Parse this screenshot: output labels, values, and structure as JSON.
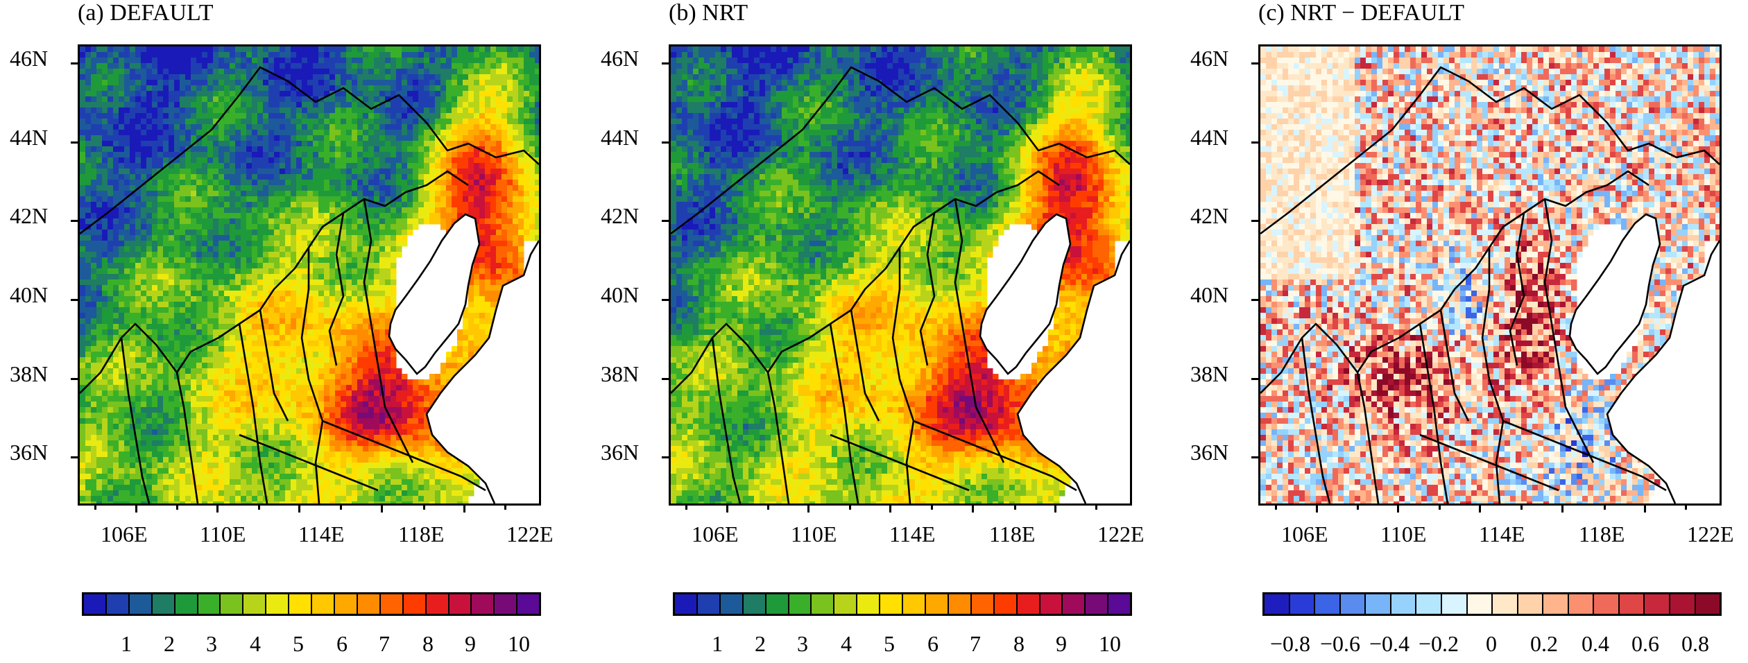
{
  "panels": [
    {
      "title": "(a) DEFAULT",
      "style": "default",
      "lat_labels": [
        "46N",
        "44N",
        "42N",
        "40N",
        "38N",
        "36N"
      ],
      "lon_labels": [
        "106E",
        "110E",
        "114E",
        "118E",
        "122E"
      ],
      "colorbar": {
        "colors": [
          "#1a1ab8",
          "#1f3fb0",
          "#1d5a9a",
          "#1e7d64",
          "#1f9a3a",
          "#3ab02a",
          "#7ac21e",
          "#b8d41a",
          "#eaea10",
          "#ffe000",
          "#ffc800",
          "#ffa800",
          "#ff8c00",
          "#ff6400",
          "#ff3c00",
          "#e81e1e",
          "#c8123c",
          "#a00a5a",
          "#780a78",
          "#5a0a96"
        ],
        "labels": [
          "1",
          "2",
          "3",
          "4",
          "5",
          "6",
          "7",
          "8",
          "9",
          "10"
        ]
      }
    },
    {
      "title": "(b) NRT",
      "style": "default",
      "lat_labels": [
        "46N",
        "44N",
        "42N",
        "40N",
        "38N",
        "36N"
      ],
      "lon_labels": [
        "106E",
        "110E",
        "114E",
        "118E",
        "122E"
      ],
      "colorbar": {
        "colors": [
          "#1a1ab8",
          "#1f3fb0",
          "#1d5a9a",
          "#1e7d64",
          "#1f9a3a",
          "#3ab02a",
          "#7ac21e",
          "#b8d41a",
          "#eaea10",
          "#ffe000",
          "#ffc800",
          "#ffa800",
          "#ff8c00",
          "#ff6400",
          "#ff3c00",
          "#e81e1e",
          "#c8123c",
          "#a00a5a",
          "#780a78",
          "#5a0a96"
        ],
        "labels": [
          "1",
          "2",
          "3",
          "4",
          "5",
          "6",
          "7",
          "8",
          "9",
          "10"
        ]
      }
    },
    {
      "title": "(c) NRT − DEFAULT",
      "style": "diff",
      "lat_labels": [
        "46N",
        "44N",
        "42N",
        "40N",
        "38N",
        "36N"
      ],
      "lon_labels": [
        "106E",
        "110E",
        "114E",
        "118E",
        "122E"
      ],
      "colorbar": {
        "colors": [
          "#1e1ebe",
          "#2a3cd8",
          "#3c64e6",
          "#5a8cf0",
          "#78b4f8",
          "#96d2fc",
          "#b4e6fe",
          "#d8f4ff",
          "#fff8e6",
          "#ffe8c8",
          "#ffd2aa",
          "#ffb48c",
          "#fa9070",
          "#f06a5a",
          "#e04646",
          "#c8283c",
          "#aa1432",
          "#8c0a28"
        ],
        "labels": [
          "−0.8",
          "−0.6",
          "−0.4",
          "−0.2",
          "0",
          "0.2",
          "0.4",
          "0.6",
          "0.8"
        ]
      }
    }
  ]
}
